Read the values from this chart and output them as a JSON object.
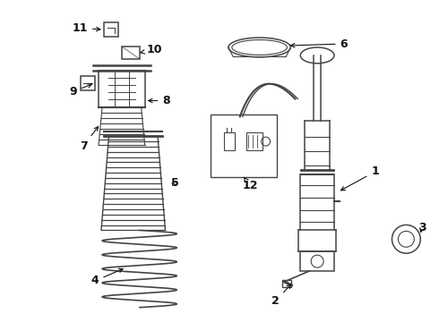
{
  "bg_color": "#ffffff",
  "line_color": "#444444",
  "label_color": "#111111",
  "figsize": [
    4.9,
    3.6
  ],
  "dpi": 100,
  "xlim": [
    0,
    490
  ],
  "ylim": [
    0,
    360
  ]
}
